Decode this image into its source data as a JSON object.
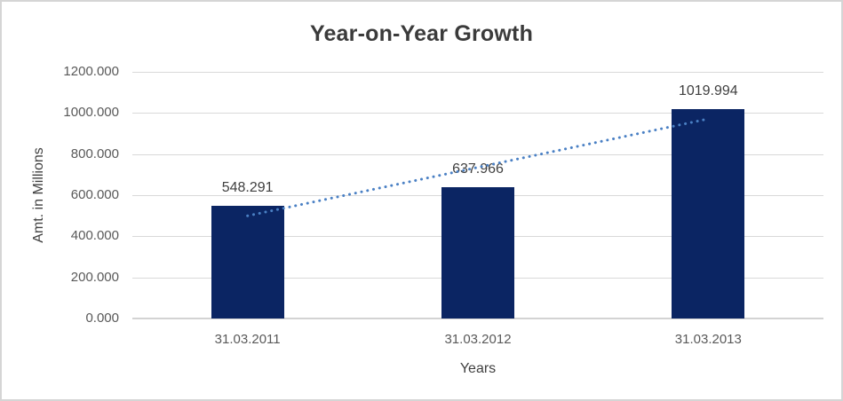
{
  "chart_data": {
    "type": "bar",
    "title": "Year-on-Year Growth",
    "xlabel": "Years",
    "ylabel": "Amt. in Millions",
    "categories": [
      "31.03.2011",
      "31.03.2012",
      "31.03.2013"
    ],
    "values": [
      548.291,
      637.966,
      1019.994
    ],
    "data_labels": [
      "548.291",
      "637.966",
      "1019.994"
    ],
    "ylim": [
      0,
      1200
    ],
    "ytick_step": 200,
    "ytick_labels": [
      "0.000",
      "200.000",
      "400.000",
      "600.000",
      "800.000",
      "1000.000",
      "1200.000"
    ],
    "grid": true,
    "legend": "none",
    "trendline": "linear-dotted",
    "colors": {
      "bar": "#0b2563",
      "trendline": "#4a80c4",
      "gridline": "#d9d9d9",
      "axis_line": "#d3d3d3",
      "tick_text": "#595959",
      "label_text": "#404040",
      "title_text": "#3b3b3b",
      "frame_border": "#d5d5d5",
      "background": "#ffffff"
    }
  }
}
